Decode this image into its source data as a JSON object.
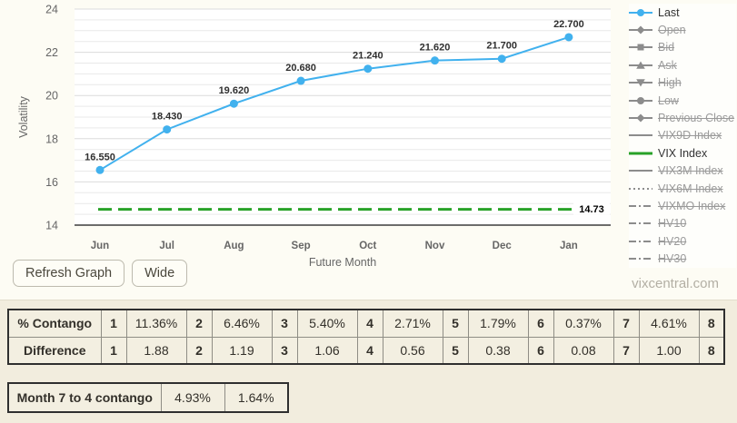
{
  "site": {
    "watermark": "vixcentral.com"
  },
  "buttons": {
    "refresh": "Refresh Graph",
    "wide": "Wide"
  },
  "chart_data": {
    "type": "line",
    "xlabel": "Future Month",
    "ylabel": "Volatility",
    "ylim": [
      14,
      24
    ],
    "y_ticks": [
      14,
      16,
      18,
      20,
      22,
      24
    ],
    "minor_grid_step": 0.5,
    "grid": true,
    "legend_position": "right",
    "categories": [
      "Jun",
      "Jul",
      "Aug",
      "Sep",
      "Oct",
      "Nov",
      "Dec",
      "Jan"
    ],
    "series": [
      {
        "name": "Last",
        "type": "line",
        "color": "#41b1ee",
        "values": [
          16.55,
          18.43,
          19.62,
          20.68,
          21.24,
          21.62,
          21.7,
          22.7
        ],
        "point_labels": [
          "16.550",
          "18.430",
          "19.620",
          "20.680",
          "21.240",
          "21.620",
          "21.700",
          "22.700"
        ]
      },
      {
        "name": "VIX Index",
        "type": "dashed-hline",
        "color": "#28a228",
        "value": 14.73,
        "label": "14.73"
      }
    ]
  },
  "legend": {
    "items": [
      {
        "label": "Last",
        "marker": "circle",
        "active": true,
        "color": "#41b1ee"
      },
      {
        "label": "Open",
        "marker": "diamond",
        "active": false
      },
      {
        "label": "Bid",
        "marker": "square",
        "active": false
      },
      {
        "label": "Ask",
        "marker": "triangle-up",
        "active": false
      },
      {
        "label": "High",
        "marker": "triangle-down",
        "active": false
      },
      {
        "label": "Low",
        "marker": "circle",
        "active": false
      },
      {
        "label": "Previous Close",
        "marker": "diamond",
        "active": false
      },
      {
        "label": "VIX9D Index",
        "marker": "line",
        "active": false
      },
      {
        "label": "VIX Index",
        "marker": "line",
        "active": true,
        "color": "#28a228"
      },
      {
        "label": "VIX3M Index",
        "marker": "line",
        "active": false
      },
      {
        "label": "VIX6M Index",
        "marker": "dotted",
        "active": false
      },
      {
        "label": "VIXMO Index",
        "marker": "dashdot",
        "active": false
      },
      {
        "label": "HV10",
        "marker": "dashdot",
        "active": false
      },
      {
        "label": "HV20",
        "marker": "dashdot",
        "active": false
      },
      {
        "label": "HV30",
        "marker": "dashdot",
        "active": false
      }
    ]
  },
  "tables": {
    "contango": {
      "rows": [
        {
          "label": "% Contango",
          "pairs": [
            [
              "1",
              "11.36%"
            ],
            [
              "2",
              "6.46%"
            ],
            [
              "3",
              "5.40%"
            ],
            [
              "4",
              "2.71%"
            ],
            [
              "5",
              "1.79%"
            ],
            [
              "6",
              "0.37%"
            ],
            [
              "7",
              "4.61%"
            ]
          ],
          "tail": "8"
        },
        {
          "label": "Difference",
          "pairs": [
            [
              "1",
              "1.88"
            ],
            [
              "2",
              "1.19"
            ],
            [
              "3",
              "1.06"
            ],
            [
              "4",
              "0.56"
            ],
            [
              "5",
              "0.38"
            ],
            [
              "6",
              "0.08"
            ],
            [
              "7",
              "1.00"
            ]
          ],
          "tail": "8"
        }
      ]
    },
    "month_contango": {
      "label": "Month 7 to 4 contango",
      "values": [
        "4.93%",
        "1.64%"
      ]
    }
  }
}
